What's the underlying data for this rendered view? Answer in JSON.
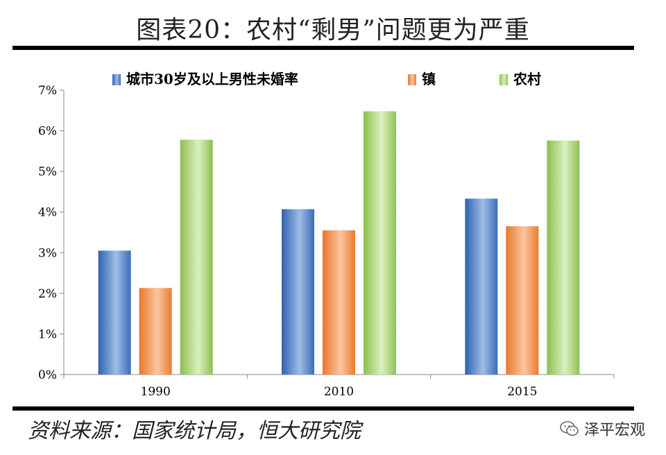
{
  "title": "图表20：农村“剩男”问题更为严重",
  "source": "资料来源：国家统计局，恒大研究院",
  "brand": {
    "name": "泽平宏观",
    "icon": "wechat-icon"
  },
  "colors": {
    "urban": "#4f81bd",
    "town": "#f79646",
    "rural": "#9bbb59"
  },
  "chart_data": {
    "type": "bar",
    "categories": [
      "1990",
      "2010",
      "2015"
    ],
    "series": [
      {
        "name": "城市30岁及以上男性未婚率",
        "values": [
          3.05,
          4.07,
          4.33
        ]
      },
      {
        "name": "镇",
        "values": [
          2.13,
          3.55,
          3.65
        ]
      },
      {
        "name": "农村",
        "values": [
          5.78,
          6.48,
          5.76
        ]
      }
    ],
    "ylim": [
      0,
      7
    ],
    "yticks": [
      "0%",
      "1%",
      "2%",
      "3%",
      "4%",
      "5%",
      "6%",
      "7%"
    ],
    "grid": false,
    "legend": "top",
    "xlabel": "",
    "ylabel": ""
  }
}
